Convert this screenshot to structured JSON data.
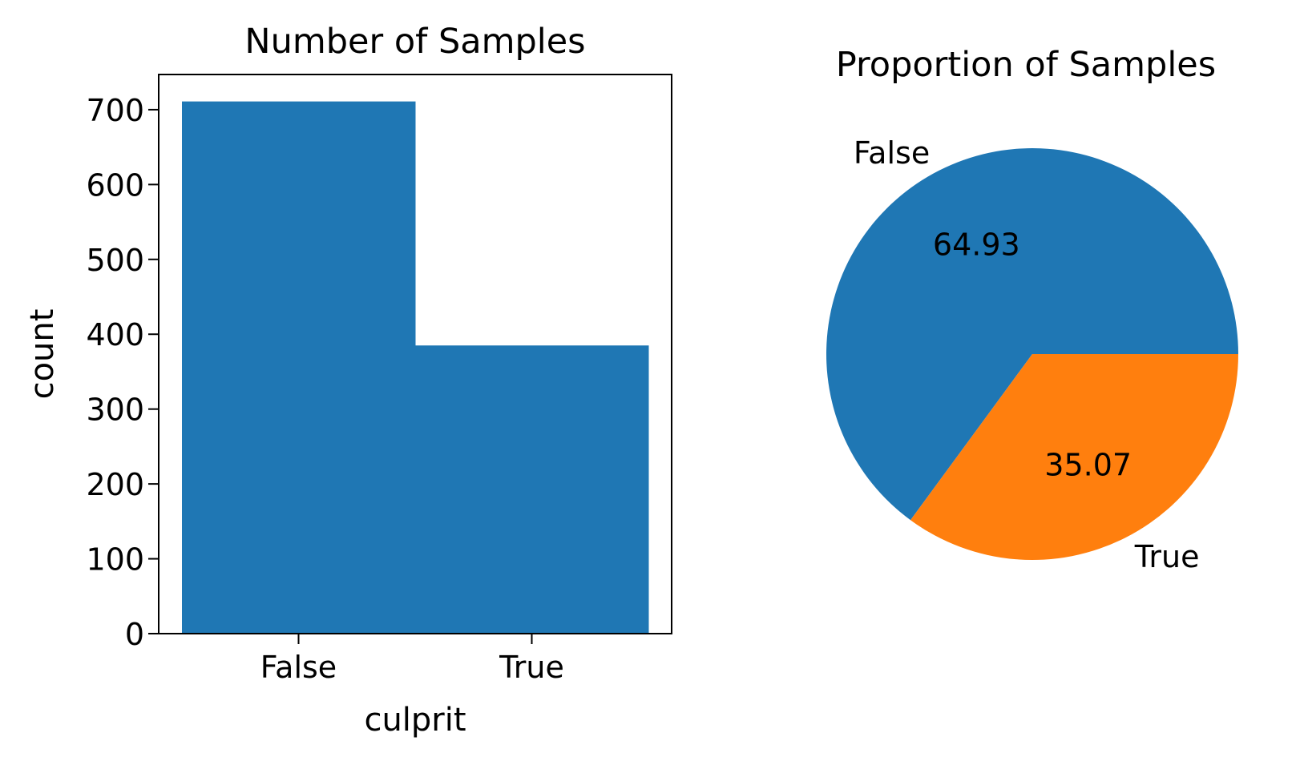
{
  "chart_data": [
    {
      "type": "bar",
      "title": "Number of Samples",
      "xlabel": "culprit",
      "ylabel": "count",
      "categories": [
        "False",
        "True"
      ],
      "values": [
        711,
        385
      ],
      "ylim": [
        0,
        747
      ],
      "yticks": [
        0,
        100,
        200,
        300,
        400,
        500,
        600,
        700
      ],
      "color": "#1f77b4",
      "grid": false
    },
    {
      "type": "pie",
      "title": "Proportion of Samples",
      "labels": [
        "False",
        "True"
      ],
      "values": [
        64.93,
        35.07
      ],
      "value_labels": [
        "64.93",
        "35.07"
      ],
      "colors": [
        "#1f77b4",
        "#ff7f0e"
      ],
      "start_angle": 0,
      "direction": "counterclockwise"
    }
  ]
}
